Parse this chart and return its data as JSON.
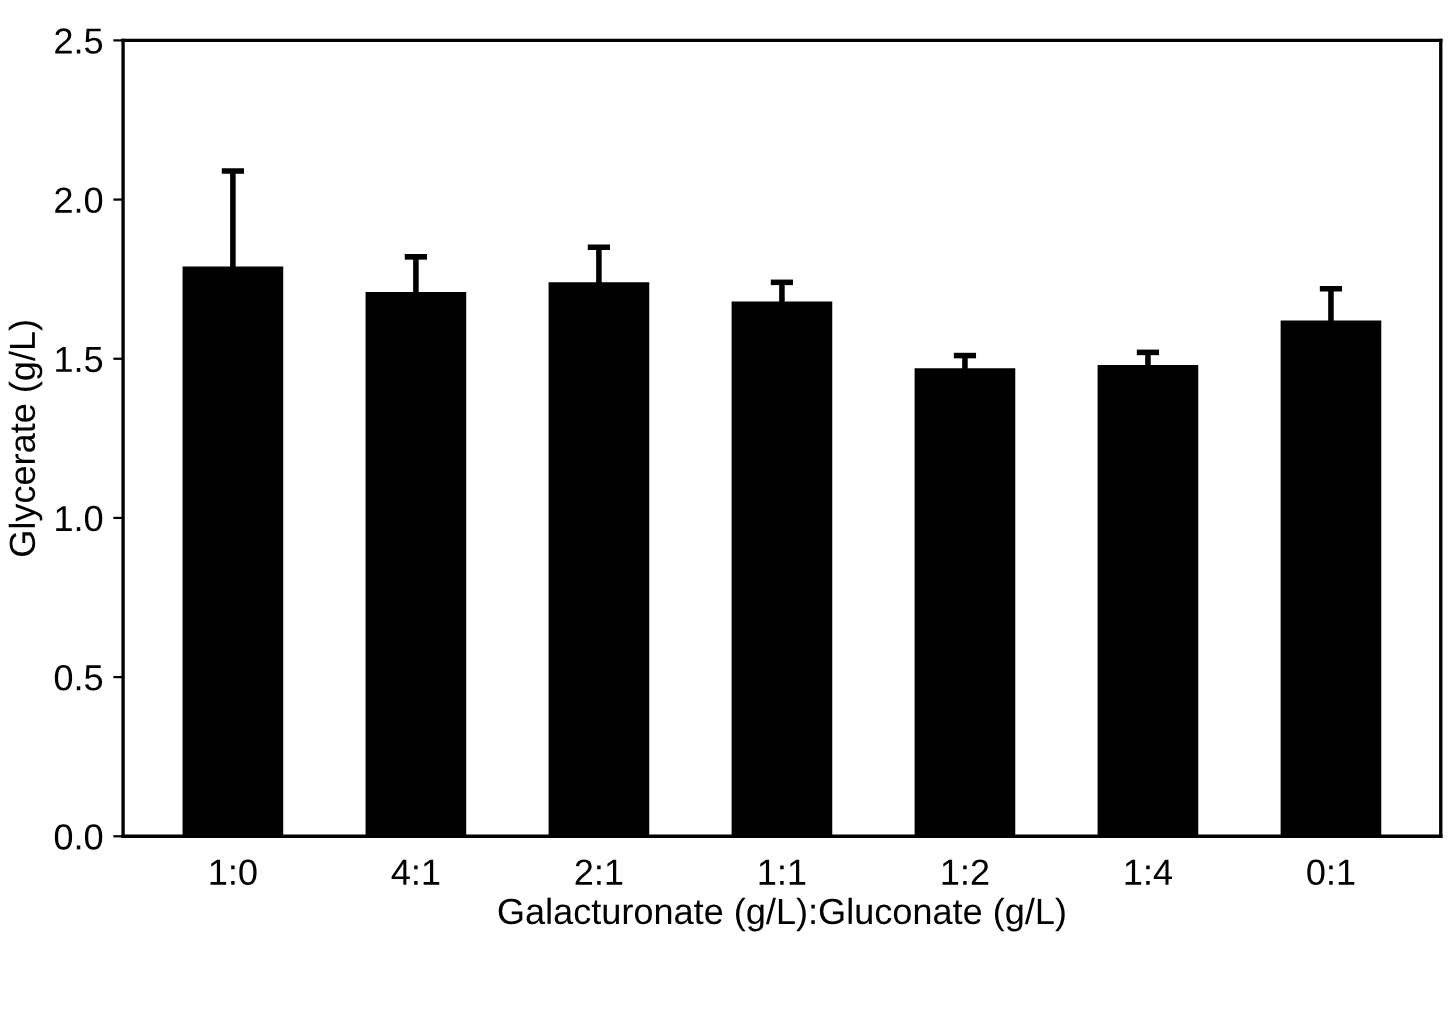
{
  "chart_data": {
    "type": "bar",
    "xlabel": "Galacturonate (g/L):Gluconate (g/L)",
    "ylabel": "Glycerate (g/L)",
    "categories": [
      "1:0",
      "4:1",
      "2:1",
      "1:1",
      "1:2",
      "1:4",
      "0:1"
    ],
    "values": [
      1.79,
      1.71,
      1.74,
      1.68,
      1.47,
      1.48,
      1.62
    ],
    "errors": [
      0.3,
      0.11,
      0.11,
      0.06,
      0.04,
      0.04,
      0.1
    ],
    "color": "#000000",
    "ylim": [
      0,
      2.5
    ],
    "yticks": [
      {
        "value": 0,
        "label": "0.0"
      },
      {
        "value": 0.5,
        "label": "0.5"
      },
      {
        "value": 1,
        "label": "1.0"
      },
      {
        "value": 1.5,
        "label": "1.5"
      },
      {
        "value": 2,
        "label": "2.0"
      },
      {
        "value": 2.5,
        "label": "2.5"
      }
    ],
    "grid": false
  }
}
